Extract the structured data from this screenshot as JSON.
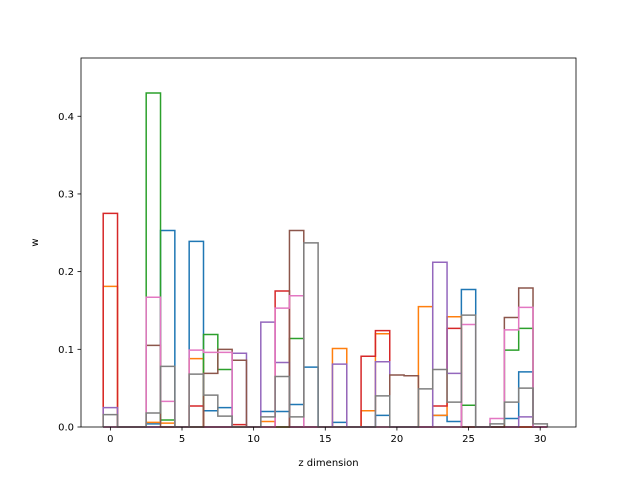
{
  "chart_data": {
    "type": "bar",
    "style": "step-histogram",
    "xlabel": "z dimension",
    "ylabel": "w",
    "xlim": [
      -2.05,
      32.5
    ],
    "ylim": [
      0,
      0.475
    ],
    "grid": false,
    "xticks": [
      0,
      5,
      10,
      15,
      20,
      25,
      30
    ],
    "yticks": [
      0.0,
      0.1,
      0.2,
      0.3,
      0.4
    ],
    "bin_width": 1,
    "series": [
      {
        "color": "#1f77b4",
        "values": [
          0.0,
          0.0,
          0.0,
          0.004,
          0.253,
          0.0,
          0.239,
          0.021,
          0.025,
          0.0,
          0.0,
          0.02,
          0.02,
          0.029,
          0.077,
          0.0,
          0.006,
          0.0,
          0.0,
          0.015,
          0.0,
          0.0,
          0.0,
          0.015,
          0.007,
          0.177,
          0.0,
          0.0,
          0.011,
          0.071,
          0.0
        ]
      },
      {
        "color": "#ff7f0e",
        "values": [
          0.181,
          0.0,
          0.0,
          0.006,
          0.005,
          0.0,
          0.088,
          0.0,
          0.0,
          0.0,
          0.0,
          0.007,
          0.0,
          0.0,
          0.0,
          0.0,
          0.101,
          0.0,
          0.021,
          0.12,
          0.0,
          0.0,
          0.155,
          0.015,
          0.142,
          0.0,
          0.0,
          0.0,
          0.0,
          0.0,
          0.0
        ]
      },
      {
        "color": "#2ca02c",
        "values": [
          0.0,
          0.0,
          0.0,
          0.43,
          0.009,
          0.0,
          0.0,
          0.119,
          0.074,
          0.0,
          0.0,
          0.0,
          0.0,
          0.114,
          0.0,
          0.0,
          0.0,
          0.0,
          0.0,
          0.0,
          0.0,
          0.0,
          0.0,
          0.0,
          0.0,
          0.028,
          0.0,
          0.0,
          0.099,
          0.127,
          0.0
        ]
      },
      {
        "color": "#d62728",
        "values": [
          0.275,
          0.0,
          0.0,
          0.0,
          0.0,
          0.0,
          0.027,
          0.0,
          0.0,
          0.003,
          0.0,
          0.0,
          0.175,
          0.0,
          0.0,
          0.0,
          0.0,
          0.0,
          0.091,
          0.124,
          0.0,
          0.0,
          0.0,
          0.027,
          0.127,
          0.0,
          0.0,
          0.0,
          0.0,
          0.0,
          0.0
        ]
      },
      {
        "color": "#9467bd",
        "values": [
          0.025,
          0.0,
          0.0,
          0.0,
          0.0,
          0.0,
          0.0,
          0.0,
          0.0,
          0.095,
          0.0,
          0.135,
          0.083,
          0.0,
          0.0,
          0.0,
          0.081,
          0.0,
          0.0,
          0.084,
          0.0,
          0.0,
          0.0,
          0.212,
          0.069,
          0.0,
          0.0,
          0.0,
          0.0,
          0.013,
          0.0
        ]
      },
      {
        "color": "#8c564b",
        "values": [
          0.0,
          0.0,
          0.0,
          0.105,
          0.0,
          0.0,
          0.0,
          0.069,
          0.1,
          0.086,
          0.0,
          0.0,
          0.0,
          0.253,
          0.0,
          0.0,
          0.0,
          0.0,
          0.0,
          0.0,
          0.067,
          0.066,
          0.0,
          0.0,
          0.0,
          0.0,
          0.0,
          0.0,
          0.141,
          0.179,
          0.0
        ]
      },
      {
        "color": "#e377c2",
        "values": [
          0.0,
          0.0,
          0.0,
          0.167,
          0.033,
          0.0,
          0.099,
          0.096,
          0.096,
          0.0,
          0.0,
          0.0,
          0.153,
          0.169,
          0.0,
          0.0,
          0.0,
          0.0,
          0.0,
          0.0,
          0.0,
          0.0,
          0.0,
          0.0,
          0.0,
          0.132,
          0.0,
          0.011,
          0.125,
          0.154,
          0.0
        ]
      },
      {
        "color": "#7f7f7f",
        "values": [
          0.016,
          0.0,
          0.0,
          0.018,
          0.078,
          0.0,
          0.068,
          0.041,
          0.014,
          0.0,
          0.0,
          0.013,
          0.065,
          0.013,
          0.237,
          0.0,
          0.0,
          0.0,
          0.0,
          0.04,
          0.0,
          0.0,
          0.049,
          0.074,
          0.032,
          0.144,
          0.0,
          0.004,
          0.032,
          0.05,
          0.004
        ]
      }
    ]
  }
}
